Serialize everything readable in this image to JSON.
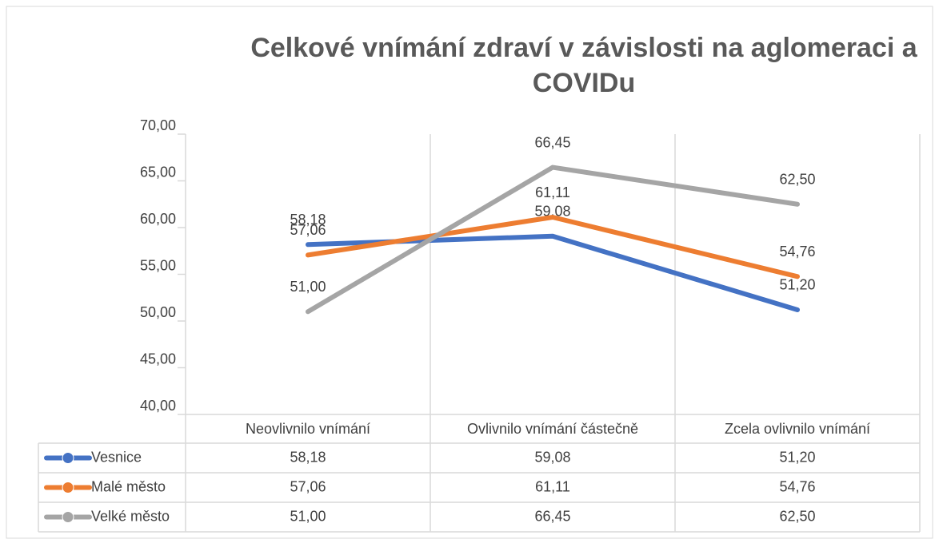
{
  "chart_data": {
    "type": "line",
    "title": "Celkové vnímání zdraví v závislosti na aglomeraci a COVIDu",
    "categories": [
      "Neovlivnilo vnímání",
      "Ovlivnilo vnímání částečně",
      "Zcela ovlivnilo vnímání"
    ],
    "series": [
      {
        "name": "Vesnice",
        "color": "#4472c4",
        "values": [
          58.18,
          59.08,
          51.2
        ],
        "value_labels": [
          "58,18",
          "59,08",
          "51,20"
        ]
      },
      {
        "name": "Malé město",
        "color": "#ed7d31",
        "values": [
          57.06,
          61.11,
          54.76
        ],
        "value_labels": [
          "57,06",
          "61,11",
          "54,76"
        ]
      },
      {
        "name": "Velké město",
        "color": "#a5a5a5",
        "values": [
          51.0,
          66.45,
          62.5
        ],
        "value_labels": [
          "51,00",
          "66,45",
          "62,50"
        ]
      }
    ],
    "ylim": [
      40,
      70
    ],
    "yticks": [
      {
        "value": 40,
        "label": "40,00"
      },
      {
        "value": 45,
        "label": "45,00"
      },
      {
        "value": 50,
        "label": "50,00"
      },
      {
        "value": 55,
        "label": "55,00"
      },
      {
        "value": 60,
        "label": "60,00"
      },
      {
        "value": 65,
        "label": "65,00"
      },
      {
        "value": 70,
        "label": "70,00"
      }
    ],
    "grid": false
  }
}
